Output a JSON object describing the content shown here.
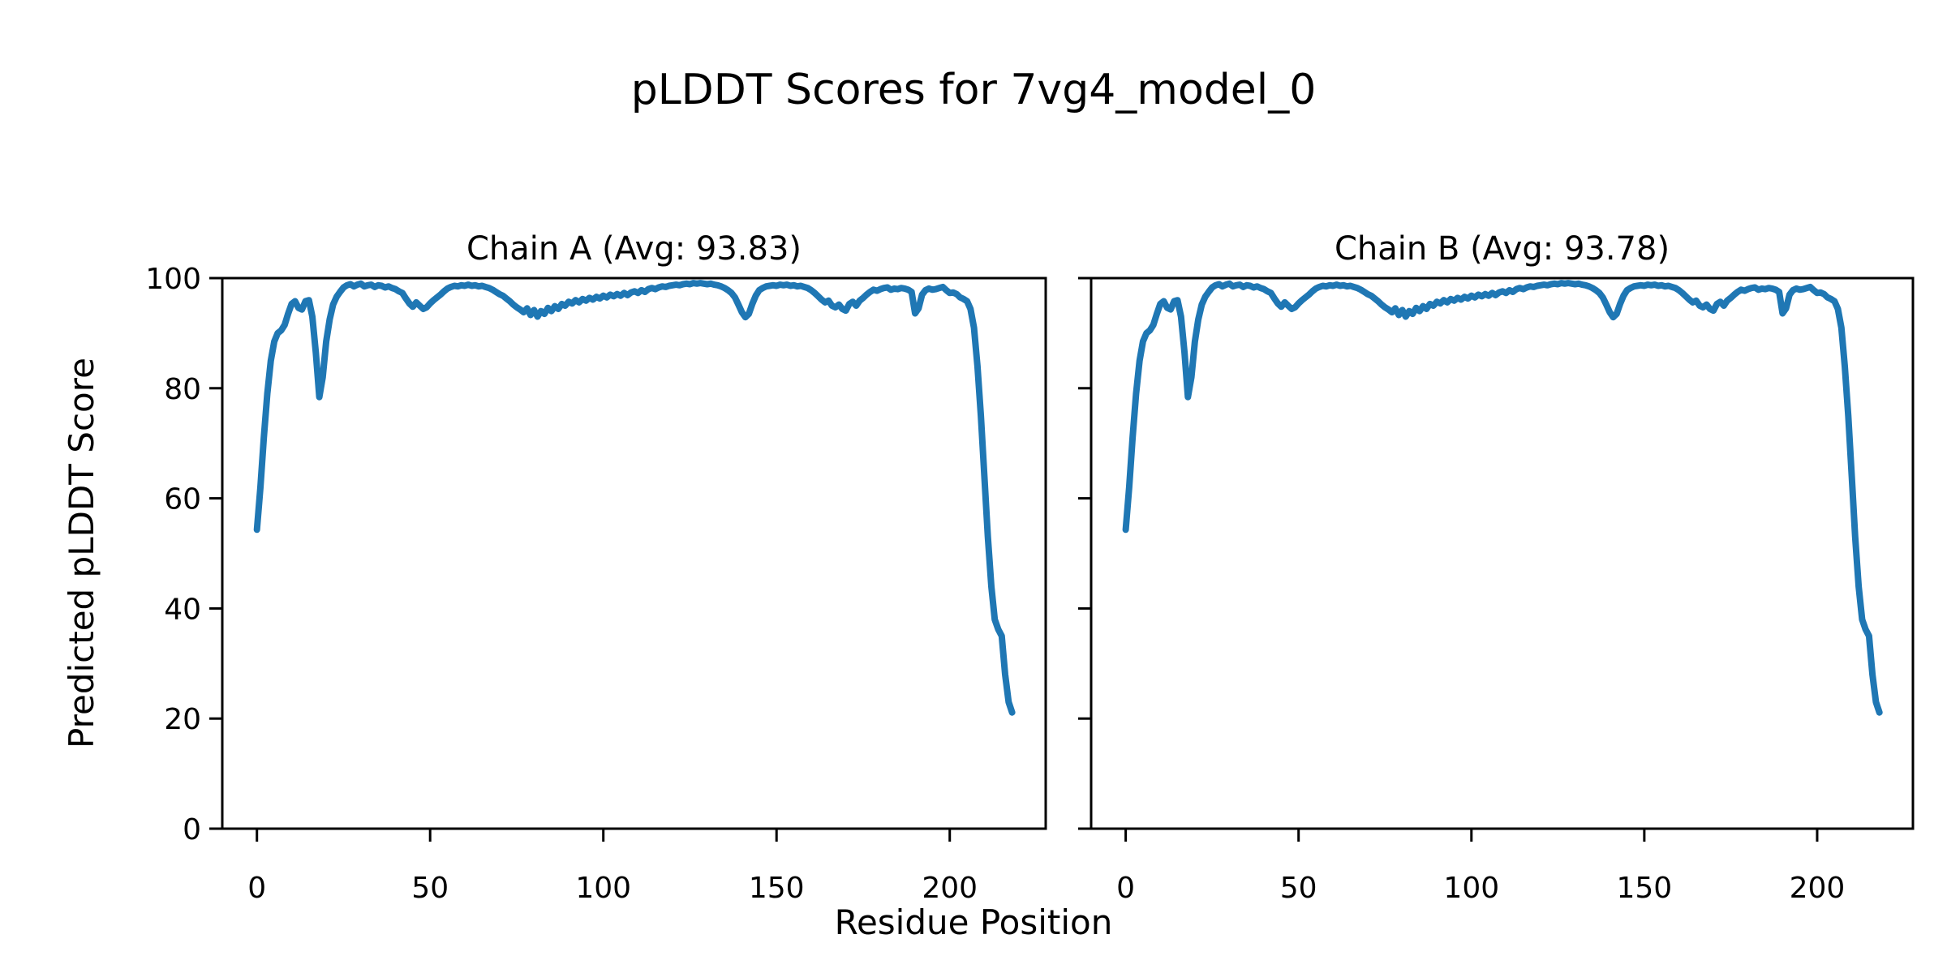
{
  "figure": {
    "title": "pLDDT Scores for 7vg4_model_0",
    "xlabel": "Residue Position",
    "ylabel": "Predicted pLDDT Score",
    "line_color": "#1f77b4",
    "background": "#ffffff",
    "text_color": "#000000"
  },
  "chart_data": [
    {
      "type": "line",
      "title": "Chain A (Avg: 93.83)",
      "chain": "A",
      "avg": 93.83,
      "x_start": 0,
      "x_step": 1,
      "xlim": [
        -10,
        227.7
      ],
      "ylim": [
        0,
        100
      ],
      "xticks": [
        0,
        50,
        100,
        150,
        200
      ],
      "yticks": [
        0,
        20,
        40,
        60,
        80,
        100
      ],
      "show_ytick_labels": true,
      "grid": false,
      "values": [
        54.3,
        62,
        71,
        79,
        85,
        88.5,
        90,
        90.5,
        91.5,
        93.5,
        95.3,
        95.8,
        94.6,
        94.3,
        95.8,
        96,
        93,
        86.5,
        78.4,
        82,
        88.5,
        92.5,
        95.2,
        96.6,
        97.5,
        98.3,
        98.7,
        98.9,
        98.5,
        98.8,
        99,
        98.5,
        98.7,
        98.8,
        98.4,
        98.7,
        98.6,
        98.3,
        98.5,
        98.2,
        98,
        97.6,
        97.3,
        96.3,
        95.4,
        94.8,
        95.6,
        95,
        94.4,
        94.7,
        95.4,
        96,
        96.5,
        97,
        97.6,
        98.1,
        98.4,
        98.6,
        98.5,
        98.7,
        98.6,
        98.8,
        98.6,
        98.7,
        98.5,
        98.6,
        98.4,
        98.2,
        97.9,
        97.5,
        97.1,
        96.8,
        96.3,
        95.8,
        95.2,
        94.7,
        94.3,
        93.8,
        94.5,
        93.3,
        94.2,
        93,
        94,
        93.5,
        94.6,
        94,
        94.9,
        94.4,
        95.3,
        95,
        95.7,
        95.4,
        96,
        95.6,
        96.2,
        95.9,
        96.4,
        96.1,
        96.6,
        96.3,
        96.8,
        96.5,
        97,
        96.7,
        97.1,
        96.8,
        97.3,
        96.9,
        97.4,
        97.6,
        97.3,
        97.8,
        97.5,
        98,
        98.2,
        98,
        98.3,
        98.5,
        98.4,
        98.6,
        98.7,
        98.8,
        98.7,
        98.9,
        99,
        98.9,
        99.1,
        99,
        99.1,
        99,
        98.9,
        99,
        98.8,
        98.7,
        98.5,
        98.2,
        97.8,
        97.3,
        96.5,
        95.2,
        93.8,
        92.9,
        93.5,
        95.3,
        96.8,
        97.8,
        98.2,
        98.5,
        98.6,
        98.7,
        98.6,
        98.8,
        98.7,
        98.8,
        98.6,
        98.7,
        98.5,
        98.6,
        98.4,
        98.2,
        97.8,
        97.3,
        96.7,
        96.1,
        95.6,
        95.9,
        95,
        94.7,
        95.2,
        94.4,
        94.1,
        95.3,
        95.7,
        95,
        95.9,
        96.4,
        97,
        97.5,
        97.9,
        97.7,
        98,
        98.2,
        98.3,
        97.9,
        98.1,
        98,
        98.2,
        98.1,
        97.9,
        97.5,
        93.6,
        94.5,
        97,
        97.8,
        98.1,
        97.9,
        98,
        98.2,
        98.4,
        97.8,
        97.3,
        97.4,
        97.1,
        96.5,
        96.2,
        95.8,
        94.4,
        91,
        84,
        75,
        64,
        53,
        44,
        38,
        36.2,
        35,
        28,
        23,
        21.1
      ]
    },
    {
      "type": "line",
      "title": "Chain B (Avg: 93.78)",
      "chain": "B",
      "avg": 93.78,
      "x_start": 0,
      "x_step": 1,
      "xlim": [
        -10,
        227.7
      ],
      "ylim": [
        0,
        100
      ],
      "xticks": [
        0,
        50,
        100,
        150,
        200
      ],
      "yticks": [
        0,
        20,
        40,
        60,
        80,
        100
      ],
      "show_ytick_labels": false,
      "grid": false,
      "values": [
        54.3,
        62,
        71,
        79,
        85,
        88.5,
        90,
        90.5,
        91.5,
        93.5,
        95.3,
        95.8,
        94.6,
        94.3,
        95.8,
        96,
        93,
        86.5,
        78.4,
        82,
        88.5,
        92.5,
        95.2,
        96.6,
        97.5,
        98.3,
        98.7,
        98.9,
        98.5,
        98.8,
        99,
        98.5,
        98.7,
        98.8,
        98.4,
        98.7,
        98.6,
        98.3,
        98.5,
        98.2,
        98,
        97.6,
        97.3,
        96.3,
        95.4,
        94.8,
        95.6,
        95,
        94.4,
        94.7,
        95.4,
        96,
        96.5,
        97,
        97.6,
        98.1,
        98.4,
        98.6,
        98.5,
        98.7,
        98.6,
        98.8,
        98.6,
        98.7,
        98.5,
        98.6,
        98.4,
        98.2,
        97.9,
        97.5,
        97.1,
        96.8,
        96.3,
        95.8,
        95.2,
        94.7,
        94.3,
        93.8,
        94.5,
        93.3,
        94.2,
        93,
        94,
        93.5,
        94.6,
        94,
        94.9,
        94.4,
        95.3,
        95,
        95.7,
        95.4,
        96,
        95.6,
        96.2,
        95.9,
        96.4,
        96.1,
        96.6,
        96.3,
        96.8,
        96.5,
        97,
        96.7,
        97.1,
        96.8,
        97.3,
        96.9,
        97.4,
        97.6,
        97.3,
        97.8,
        97.5,
        98,
        98.2,
        98,
        98.3,
        98.5,
        98.4,
        98.6,
        98.7,
        98.8,
        98.7,
        98.9,
        99,
        98.9,
        99.1,
        99,
        99.1,
        99,
        98.9,
        99,
        98.8,
        98.7,
        98.5,
        98.2,
        97.8,
        97.3,
        96.5,
        95.2,
        93.8,
        92.9,
        93.5,
        95.3,
        96.8,
        97.8,
        98.2,
        98.5,
        98.6,
        98.7,
        98.6,
        98.8,
        98.7,
        98.8,
        98.6,
        98.7,
        98.5,
        98.6,
        98.4,
        98.2,
        97.8,
        97.3,
        96.7,
        96.1,
        95.6,
        95.9,
        95,
        94.7,
        95.2,
        94.4,
        94.1,
        95.3,
        95.7,
        95,
        95.9,
        96.4,
        97,
        97.5,
        97.9,
        97.7,
        98,
        98.2,
        98.3,
        97.9,
        98.1,
        98,
        98.2,
        98.1,
        97.9,
        97.5,
        93.6,
        94.5,
        97,
        97.8,
        98.1,
        97.9,
        98,
        98.2,
        98.4,
        97.8,
        97.3,
        97.4,
        97.1,
        96.5,
        96.2,
        95.8,
        94.4,
        91,
        84,
        75,
        64,
        53,
        44,
        38,
        36.2,
        35,
        28,
        23,
        21.1
      ]
    }
  ]
}
